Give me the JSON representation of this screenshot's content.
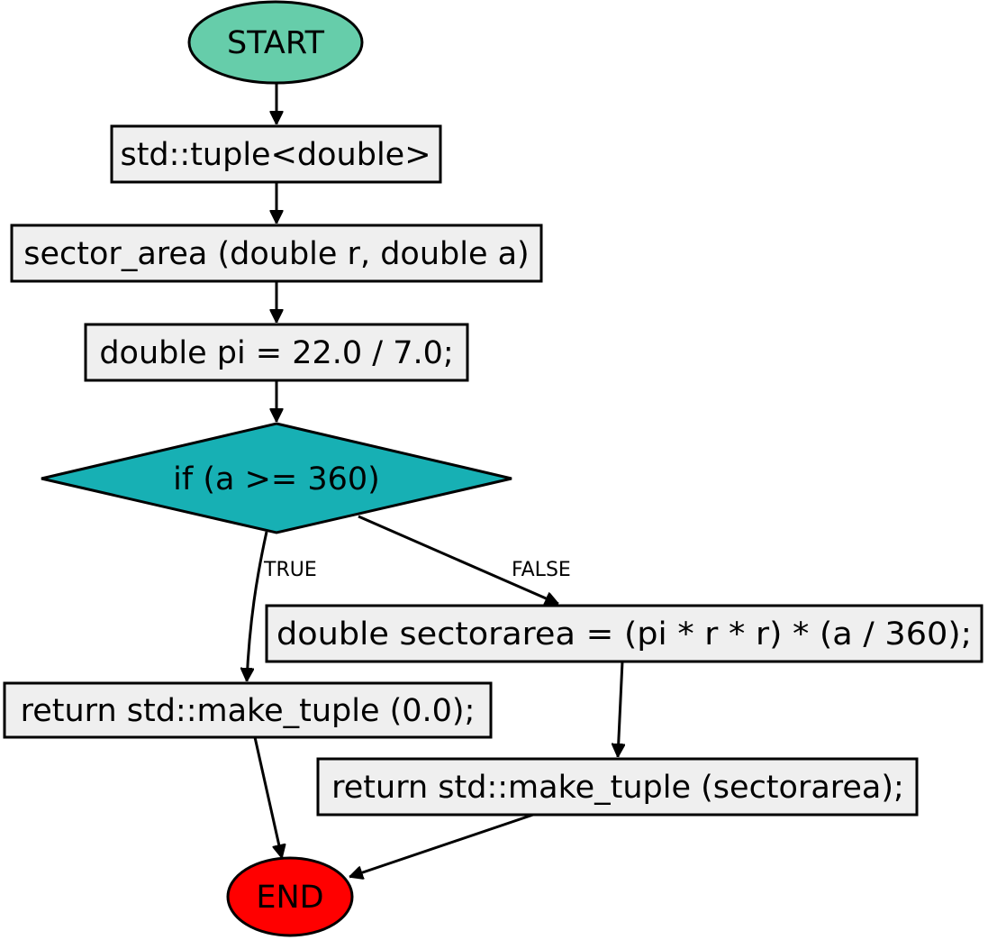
{
  "colors": {
    "start_fill": "#66cdaa",
    "end_fill": "#ff0000",
    "decision_fill": "#17b0b4",
    "process_fill": "#efefef",
    "true_label": "#006400",
    "false_label": "#ff0000"
  },
  "nodes": {
    "start": "START",
    "tuple_decl": "std::tuple<double>",
    "func_sig": "sector_area (double r, double a)",
    "pi_decl": "double pi = 22.0 / 7.0;",
    "condition": "if (a >= 360)",
    "sector_calc": "double sectorarea = (pi * r * r) * (a / 360);",
    "return_zero": "return std::make_tuple (0.0);",
    "return_area": "return std::make_tuple (sectorarea);",
    "end": "END"
  },
  "edges": {
    "true_label": "TRUE",
    "false_label": "FALSE"
  }
}
